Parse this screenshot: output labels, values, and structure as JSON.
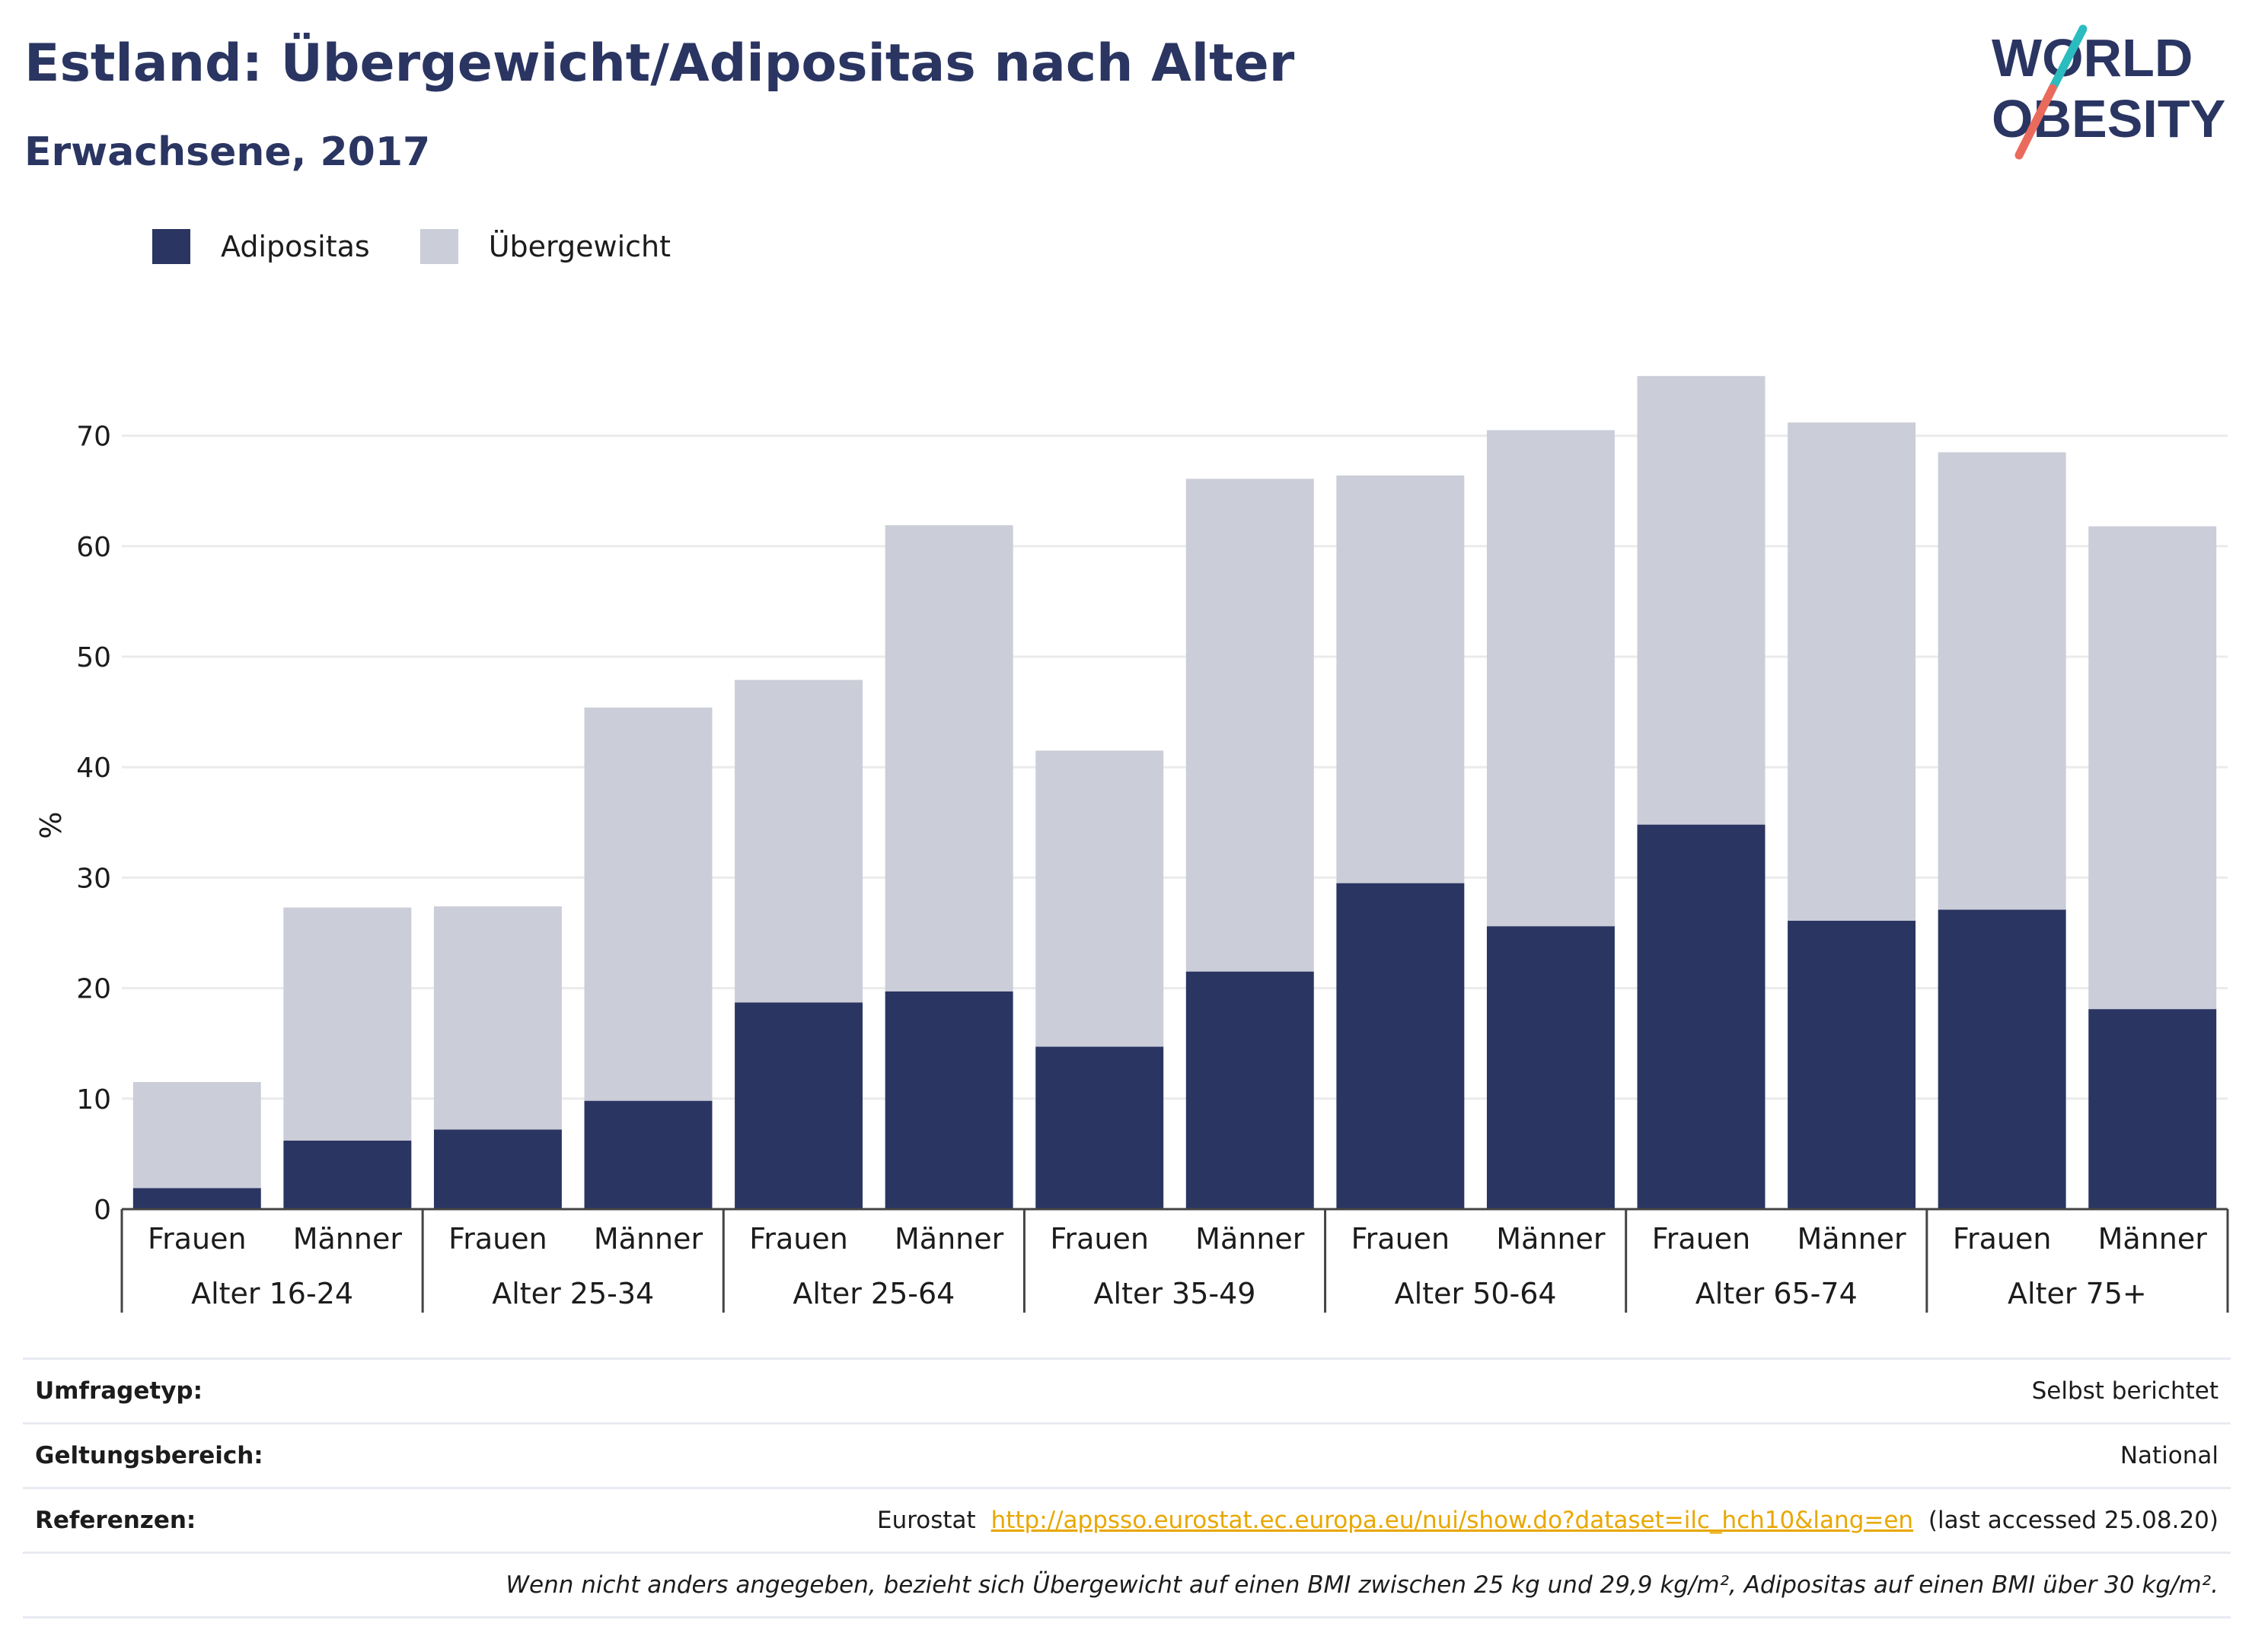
{
  "title": "Estland: Übergewicht/Adipositas nach Alter",
  "subtitle": "Erwachsene, 2017",
  "logo": {
    "line1": "WORLD",
    "line2": "OBESITY"
  },
  "colors": {
    "adipositas": "#2a3562",
    "uebergewicht": "#cbcdd8",
    "title": "#2a3562",
    "link": "#e8a700",
    "logo_teal": "#2bbcc0",
    "logo_coral": "#ea6b5c"
  },
  "legend": {
    "adipositas": "Adipositas",
    "uebergewicht": "Übergewicht"
  },
  "chart_data": {
    "type": "bar",
    "stacked": true,
    "ylabel": "%",
    "ylim": [
      0,
      75
    ],
    "yticks": [
      0,
      10,
      20,
      30,
      40,
      50,
      60,
      70
    ],
    "grid": true,
    "legend_position": "top-left",
    "groups": [
      {
        "label": "Alter 16-24",
        "bars": [
          {
            "label": "Frauen",
            "adipositas": 1.9,
            "uebergewicht": 9.6
          },
          {
            "label": "Männer",
            "adipositas": 6.2,
            "uebergewicht": 21.1
          }
        ]
      },
      {
        "label": "Alter 25-34",
        "bars": [
          {
            "label": "Frauen",
            "adipositas": 7.2,
            "uebergewicht": 20.2
          },
          {
            "label": "Männer",
            "adipositas": 9.8,
            "uebergewicht": 35.6
          }
        ]
      },
      {
        "label": "Alter 25-64",
        "bars": [
          {
            "label": "Frauen",
            "adipositas": 18.7,
            "uebergewicht": 29.2
          },
          {
            "label": "Männer",
            "adipositas": 19.7,
            "uebergewicht": 42.2
          }
        ]
      },
      {
        "label": "Alter 35-49",
        "bars": [
          {
            "label": "Frauen",
            "adipositas": 14.7,
            "uebergewicht": 26.8
          },
          {
            "label": "Männer",
            "adipositas": 21.5,
            "uebergewicht": 44.6
          }
        ]
      },
      {
        "label": "Alter 50-64",
        "bars": [
          {
            "label": "Frauen",
            "adipositas": 29.5,
            "uebergewicht": 36.9
          },
          {
            "label": "Männer",
            "adipositas": 25.6,
            "uebergewicht": 44.9
          }
        ]
      },
      {
        "label": "Alter 65-74",
        "bars": [
          {
            "label": "Frauen",
            "adipositas": 34.8,
            "uebergewicht": 40.6
          },
          {
            "label": "Männer",
            "adipositas": 26.1,
            "uebergewicht": 45.1
          }
        ]
      },
      {
        "label": "Alter 75+",
        "bars": [
          {
            "label": "Frauen",
            "adipositas": 27.1,
            "uebergewicht": 41.4
          },
          {
            "label": "Männer",
            "adipositas": 18.1,
            "uebergewicht": 43.7
          }
        ]
      }
    ]
  },
  "info": {
    "survey_label": "Umfragetyp:",
    "survey_value": "Selbst berichtet",
    "scope_label": "Geltungsbereich:",
    "scope_value": "National",
    "refs_label": "Referenzen:",
    "refs_prefix": "Eurostat",
    "refs_link": "http://appsso.eurostat.ec.europa.eu/nui/show.do?dataset=ilc_hch10&lang=en",
    "refs_suffix": "(last accessed 25.08.20)",
    "note": "Wenn nicht anders angegeben, bezieht sich Übergewicht auf einen BMI zwischen 25 kg und 29,9 kg/m², Adipositas auf einen BMI über 30 kg/m²."
  }
}
